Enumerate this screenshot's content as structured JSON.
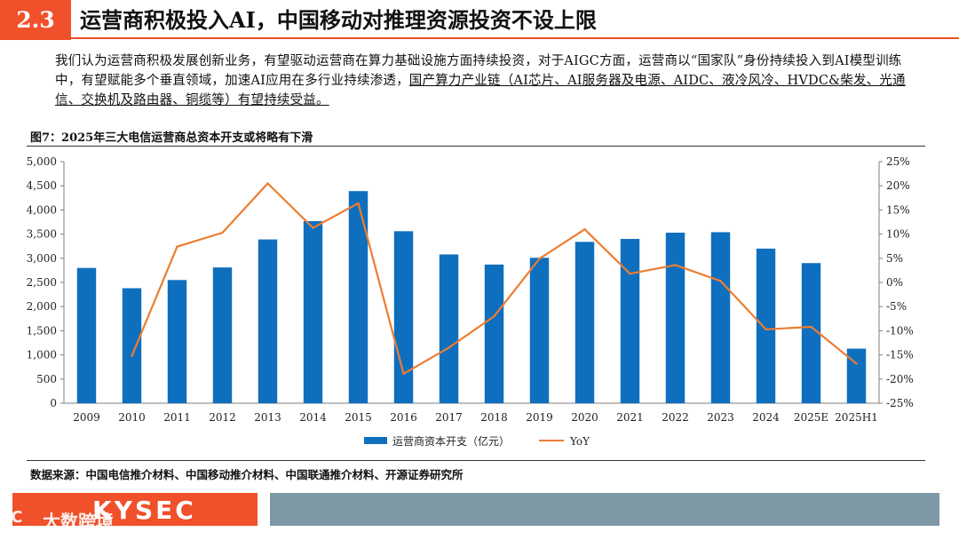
{
  "header": {
    "section_number": "2.3",
    "section_title": "运营商积极投入AI，中国移动对推理资源投资不设上限"
  },
  "body_text": {
    "part1": "我们认为运营商积极发展创新业务，有望驱动运营商在算力基础设施方面持续投资，对于AIGC方面，运营商以“国家队”身份持续投入到AI模型训练中，有望赋能多个垂直领域，加速AI应用在多行业持续渗透，",
    "part2": "国产算力产业链（AI芯片、AI服务器及电源、AIDC、液冷风冷、HVDC&柴发、光通信、交换机及路由器、铜缆等）有望持续受益。"
  },
  "figure_title": "图7：2025年三大电信运营商总资本开支或将略有下滑",
  "chart_data": {
    "type": "bar+line",
    "categories": [
      "2009",
      "2010",
      "2011",
      "2012",
      "2013",
      "2014",
      "2015",
      "2016",
      "2017",
      "2018",
      "2019",
      "2020",
      "2021",
      "2022",
      "2023",
      "2024",
      "2025E",
      "2025H1"
    ],
    "series": [
      {
        "name": "运营商资本开支（亿元）",
        "type": "bar",
        "axis": "left",
        "color": "#0e6fbe",
        "values": [
          2800,
          2380,
          2550,
          2810,
          3390,
          3770,
          4390,
          3560,
          3080,
          2870,
          3010,
          3340,
          3400,
          3530,
          3540,
          3200,
          2900,
          1130
        ]
      },
      {
        "name": "YoY",
        "type": "line",
        "axis": "right",
        "color": "#ed7d31",
        "values": [
          null,
          -15.2,
          7.4,
          10.3,
          20.5,
          11.3,
          16.4,
          -18.9,
          -13.5,
          -7.0,
          4.9,
          11.0,
          1.8,
          3.6,
          0.3,
          -9.7,
          -9.2,
          -16.8
        ]
      }
    ],
    "left_axis": {
      "min": 0,
      "max": 5000,
      "step": 500,
      "tick_labels": [
        "0",
        "500",
        "1,000",
        "1,500",
        "2,000",
        "2,500",
        "3,000",
        "3,500",
        "4,000",
        "4,500",
        "5,000"
      ]
    },
    "right_axis": {
      "min": -25,
      "max": 25,
      "step": 5,
      "tick_labels": [
        "-25%",
        "-20%",
        "-15%",
        "-10%",
        "-5%",
        "0%",
        "5%",
        "10%",
        "15%",
        "20%",
        "25%"
      ]
    },
    "legend_position": "bottom-center"
  },
  "source": "数据来源：中国电信推介材料、中国移动推介材料、中国联通推介材料、开源证券研究所",
  "footer": {
    "logo_text": "KYSEC",
    "watermark": "大数跨境"
  }
}
